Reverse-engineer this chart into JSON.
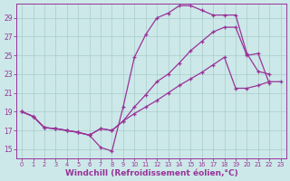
{
  "background_color": "#cce8e8",
  "grid_color": "#aacccc",
  "line_color": "#993399",
  "marker": "+",
  "xlabel": "Windchill (Refroidissement éolien,°C)",
  "xlabel_color": "#993399",
  "xlabel_fontsize": 6.5,
  "ylabel_ticks": [
    15,
    17,
    19,
    21,
    23,
    25,
    27,
    29
  ],
  "xtick_labels": [
    "0",
    "1",
    "2",
    "3",
    "4",
    "5",
    "6",
    "7",
    "8",
    "9",
    "10",
    "11",
    "12",
    "13",
    "14",
    "15",
    "16",
    "17",
    "18",
    "19",
    "20",
    "21",
    "22",
    "23"
  ],
  "ylim": [
    14.0,
    30.5
  ],
  "xlim": [
    -0.5,
    23.5
  ],
  "series1_x": [
    0,
    1,
    2,
    3,
    4,
    5,
    6,
    7,
    8,
    9,
    10,
    11,
    12,
    13,
    14,
    15,
    16,
    17,
    18,
    19,
    20,
    21,
    22
  ],
  "series1_y": [
    19.0,
    18.5,
    17.3,
    17.2,
    17.0,
    16.8,
    16.5,
    15.2,
    14.8,
    19.5,
    24.8,
    27.2,
    29.0,
    29.5,
    30.3,
    30.3,
    29.8,
    29.3,
    29.3,
    29.3,
    25.2,
    23.3,
    23.0
  ],
  "series2_x": [
    0,
    1,
    2,
    3,
    4,
    5,
    6,
    7,
    8,
    9,
    10,
    11,
    12,
    13,
    14,
    15,
    16,
    17,
    18,
    19,
    20,
    21,
    22
  ],
  "series2_y": [
    19.0,
    18.5,
    17.3,
    17.2,
    17.0,
    16.8,
    16.5,
    17.2,
    17.0,
    18.0,
    19.5,
    20.8,
    22.2,
    23.0,
    24.2,
    25.5,
    26.5,
    27.5,
    28.0,
    28.0,
    25.0,
    25.2,
    22.0
  ],
  "series3_x": [
    0,
    1,
    2,
    3,
    4,
    5,
    6,
    7,
    8,
    9,
    10,
    11,
    12,
    13,
    14,
    15,
    16,
    17,
    18,
    19,
    20,
    21,
    22,
    23
  ],
  "series3_y": [
    19.0,
    18.5,
    17.3,
    17.2,
    17.0,
    16.8,
    16.5,
    17.2,
    17.0,
    18.0,
    18.8,
    19.5,
    20.2,
    21.0,
    21.8,
    22.5,
    23.2,
    24.0,
    24.8,
    21.5,
    21.5,
    21.8,
    22.2,
    22.2
  ]
}
